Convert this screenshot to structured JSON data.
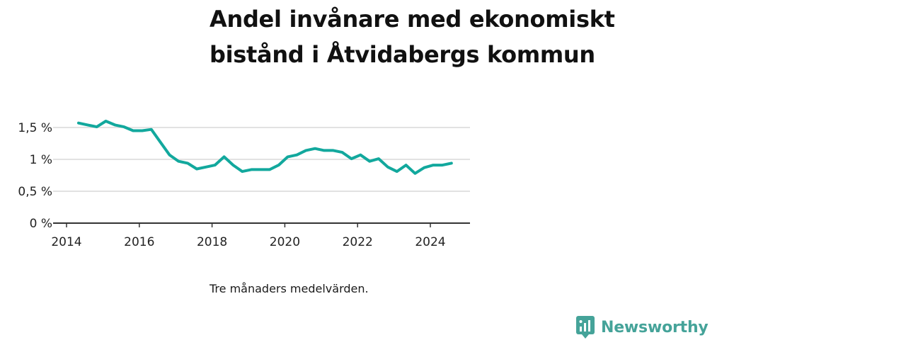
{
  "title": "Andel invånare med ekonomiskt bistånd i Åtvidabergs kommun",
  "note": "Tre månaders medelvärden.",
  "brand": {
    "name": "Newsworthy",
    "logo_icon": "newsworthy-chart-icon"
  },
  "colors": {
    "line": "#12a89d",
    "grid": "#d9d9d9",
    "axis": "#333333",
    "brand": "#45a399"
  },
  "chart_data": {
    "type": "line",
    "title": "Andel invånare med ekonomiskt bistånd i Åtvidabergs kommun",
    "xlabel": "",
    "ylabel": "",
    "xlim": [
      2014,
      2025.1
    ],
    "ylim": [
      0,
      1.5
    ],
    "x_ticks": [
      2014,
      2016,
      2018,
      2020,
      2022,
      2024
    ],
    "x_tick_labels": [
      "2014",
      "2016",
      "2018",
      "2020",
      "2022",
      "2024"
    ],
    "y_ticks": [
      0,
      0.5,
      1,
      1.5
    ],
    "y_tick_labels": [
      "0 %",
      "0,5 %",
      "1 %",
      "1,5 %"
    ],
    "grid": true,
    "legend": "none",
    "series": [
      {
        "x": [
          2014.33,
          2014.58,
          2014.83,
          2015.08,
          2015.33,
          2015.58,
          2015.83,
          2016.08,
          2016.33,
          2016.58,
          2016.83,
          2017.08,
          2017.33,
          2017.58,
          2017.83,
          2018.08,
          2018.33,
          2018.58,
          2018.83,
          2019.08,
          2019.33,
          2019.58,
          2019.83,
          2020.08,
          2020.33,
          2020.58,
          2020.83,
          2021.08,
          2021.33,
          2021.58,
          2021.83,
          2022.08,
          2022.33,
          2022.58,
          2022.83,
          2023.08,
          2023.33,
          2023.58,
          2023.83,
          2024.08,
          2024.33,
          2024.58
        ],
        "values": [
          1.57,
          1.54,
          1.51,
          1.6,
          1.54,
          1.51,
          1.45,
          1.45,
          1.47,
          1.27,
          1.07,
          0.97,
          0.94,
          0.85,
          0.88,
          0.91,
          1.04,
          0.91,
          0.81,
          0.84,
          0.84,
          0.84,
          0.91,
          1.04,
          1.07,
          1.14,
          1.17,
          1.14,
          1.14,
          1.11,
          1.01,
          1.07,
          0.97,
          1.01,
          0.88,
          0.81,
          0.91,
          0.78,
          0.87,
          0.91,
          0.91,
          0.94
        ]
      }
    ]
  }
}
